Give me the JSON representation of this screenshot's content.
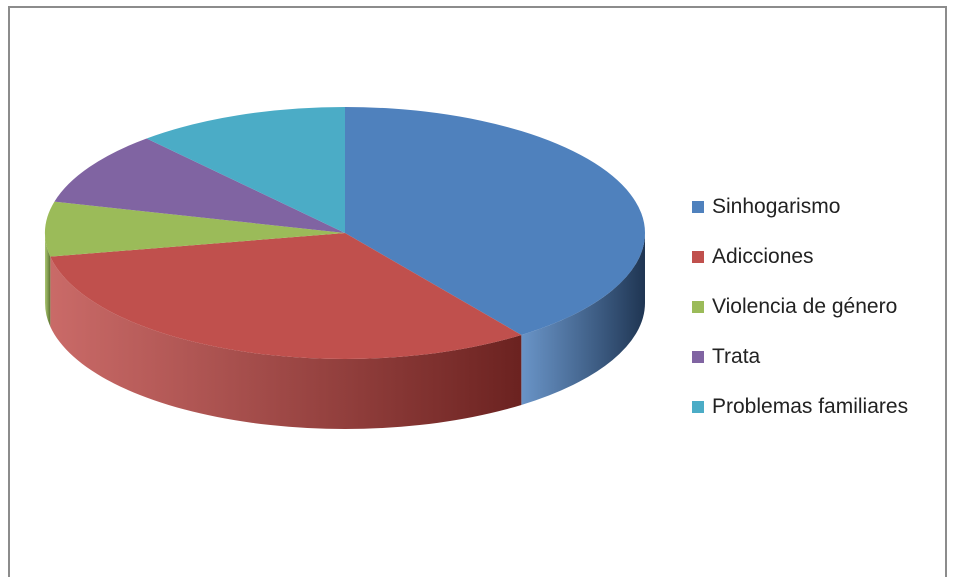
{
  "chart_data": {
    "type": "pie",
    "style": "3d",
    "categories": [
      "Sinhogarismo",
      "Adicciones",
      "Violencia de género",
      "Trata",
      "Problemas familiares"
    ],
    "values": [
      40,
      32,
      7,
      9.5,
      11.5
    ],
    "colors": [
      "#4f81bd",
      "#c0504d",
      "#9bbb59",
      "#8064a2",
      "#4bacc6"
    ],
    "side_colors": [
      "#1f3552",
      "#6b2220",
      "#5a7230",
      "#4a3a60",
      "#2a6676"
    ],
    "legend_position": "right",
    "title": ""
  }
}
